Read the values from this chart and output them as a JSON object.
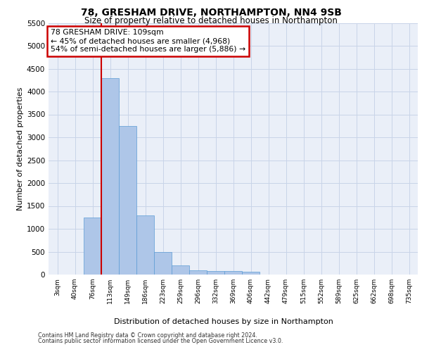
{
  "title_line1": "78, GRESHAM DRIVE, NORTHAMPTON, NN4 9SB",
  "title_line2": "Size of property relative to detached houses in Northampton",
  "xlabel": "Distribution of detached houses by size in Northampton",
  "ylabel": "Number of detached properties",
  "footer_line1": "Contains HM Land Registry data © Crown copyright and database right 2024.",
  "footer_line2": "Contains public sector information licensed under the Open Government Licence v3.0.",
  "annotation_title": "78 GRESHAM DRIVE: 109sqm",
  "annotation_line1": "← 45% of detached houses are smaller (4,968)",
  "annotation_line2": "54% of semi-detached houses are larger (5,886) →",
  "categories": [
    "3sqm",
    "40sqm",
    "76sqm",
    "113sqm",
    "149sqm",
    "186sqm",
    "223sqm",
    "259sqm",
    "296sqm",
    "332sqm",
    "369sqm",
    "406sqm",
    "442sqm",
    "479sqm",
    "515sqm",
    "552sqm",
    "589sqm",
    "625sqm",
    "662sqm",
    "698sqm",
    "735sqm"
  ],
  "values": [
    0,
    0,
    1250,
    4300,
    3250,
    1300,
    500,
    200,
    100,
    75,
    75,
    60,
    0,
    0,
    0,
    0,
    0,
    0,
    0,
    0,
    0
  ],
  "bar_color": "#aec6e8",
  "bar_edge_color": "#5b9bd5",
  "vline_color": "#cc0000",
  "vline_x_index": 3,
  "annotation_box_edgecolor": "#cc0000",
  "grid_color": "#c8d4e8",
  "background_color": "#eaeff8",
  "ylim": [
    0,
    5500
  ],
  "yticks": [
    0,
    500,
    1000,
    1500,
    2000,
    2500,
    3000,
    3500,
    4000,
    4500,
    5000,
    5500
  ]
}
